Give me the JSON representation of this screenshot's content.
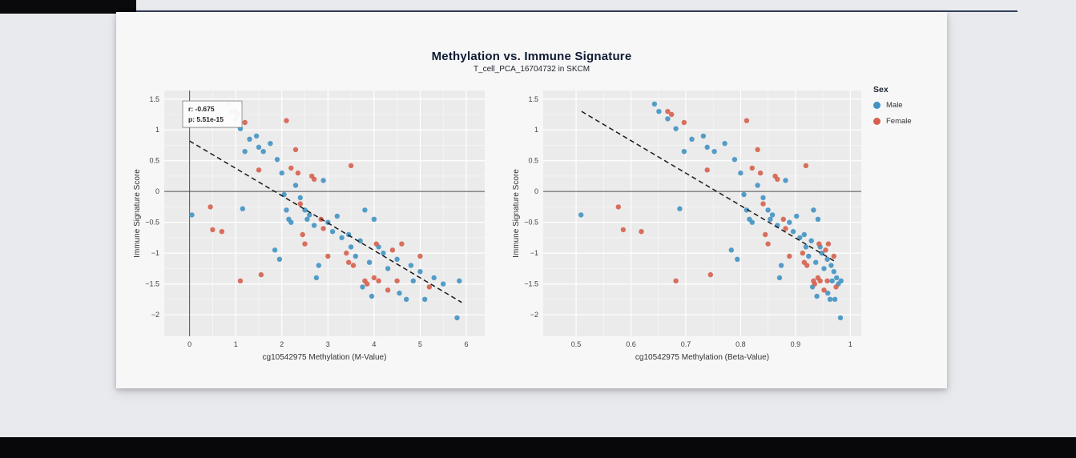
{
  "figure": {
    "title": "Methylation vs. Immune Signature",
    "subtitle": "T_cell_PCA_16704732 in SKCM"
  },
  "legend": {
    "title": "Sex",
    "items": [
      {
        "label": "Male",
        "color": "#4393c3"
      },
      {
        "label": "Female",
        "color": "#d6604d"
      }
    ]
  },
  "style": {
    "panel_bg": "#ebebeb",
    "grid_color": "#ffffff",
    "refline_color": "#4a4a4a",
    "trend_color": "#1a1a1a",
    "tick_label_color": "#444444",
    "axis_title_color": "#333333",
    "male_color": "#4393c3",
    "female_color": "#d6604d",
    "accent_rule_color": "#36425d"
  },
  "chart_data": [
    {
      "type": "scatter",
      "xlabel": "cg10542975 Methylation (M-Value)",
      "ylabel": "Immune Signature Score",
      "xlim": [
        -0.55,
        6.4
      ],
      "ylim": [
        -2.35,
        1.64
      ],
      "xticks": [
        0,
        1,
        2,
        3,
        4,
        5,
        6
      ],
      "xtick_labels": [
        "0",
        "1",
        "2",
        "3",
        "4",
        "5",
        "6"
      ],
      "yticks": [
        1.5,
        1,
        0.5,
        0,
        -0.5,
        -1,
        -1.5,
        -2
      ],
      "ytick_labels": [
        "1.5",
        "1",
        "0.5",
        "0",
        "−0.5",
        "−1",
        "−1.5",
        "−2"
      ],
      "hline": 0,
      "vline": 0,
      "trend": [
        [
          0.0,
          0.82
        ],
        [
          5.9,
          -1.8
        ]
      ],
      "annotation": {
        "x": -0.15,
        "y": 1.47,
        "lines": [
          "r: -0.675",
          "p: 5.51e-15"
        ]
      },
      "series": [
        {
          "name": "Male",
          "color": "#4393c3",
          "points": [
            [
              0.05,
              -0.38
            ],
            [
              0.85,
              1.42
            ],
            [
              0.9,
              1.3
            ],
            [
              1.0,
              1.18
            ],
            [
              1.1,
              1.02
            ],
            [
              1.3,
              0.85
            ],
            [
              1.2,
              0.65
            ],
            [
              1.45,
              0.9
            ],
            [
              1.5,
              0.72
            ],
            [
              1.6,
              0.65
            ],
            [
              1.75,
              0.78
            ],
            [
              1.9,
              0.52
            ],
            [
              1.15,
              -0.28
            ],
            [
              1.85,
              -0.95
            ],
            [
              1.95,
              -1.1
            ],
            [
              2.0,
              0.3
            ],
            [
              2.05,
              -0.05
            ],
            [
              2.1,
              -0.3
            ],
            [
              2.15,
              -0.45
            ],
            [
              2.2,
              -0.5
            ],
            [
              2.3,
              0.1
            ],
            [
              2.4,
              -0.1
            ],
            [
              2.5,
              -0.3
            ],
            [
              2.55,
              -0.45
            ],
            [
              2.6,
              -0.38
            ],
            [
              2.7,
              -0.55
            ],
            [
              2.75,
              -1.4
            ],
            [
              2.8,
              -1.2
            ],
            [
              2.9,
              0.18
            ],
            [
              3.0,
              -0.5
            ],
            [
              3.1,
              -0.65
            ],
            [
              3.2,
              -0.4
            ],
            [
              3.3,
              -0.75
            ],
            [
              3.45,
              -0.7
            ],
            [
              3.5,
              -0.9
            ],
            [
              3.6,
              -1.05
            ],
            [
              3.7,
              -0.8
            ],
            [
              3.75,
              -1.55
            ],
            [
              3.8,
              -0.3
            ],
            [
              3.9,
              -1.15
            ],
            [
              3.95,
              -1.7
            ],
            [
              4.0,
              -0.45
            ],
            [
              4.1,
              -0.9
            ],
            [
              4.2,
              -1.0
            ],
            [
              4.3,
              -1.25
            ],
            [
              4.5,
              -1.1
            ],
            [
              4.55,
              -1.65
            ],
            [
              4.7,
              -1.75
            ],
            [
              4.8,
              -1.2
            ],
            [
              4.85,
              -1.45
            ],
            [
              5.0,
              -1.3
            ],
            [
              5.1,
              -1.75
            ],
            [
              5.3,
              -1.4
            ],
            [
              5.5,
              -1.5
            ],
            [
              5.85,
              -1.45
            ],
            [
              5.8,
              -2.05
            ]
          ]
        },
        {
          "name": "Female",
          "color": "#d6604d",
          "points": [
            [
              0.45,
              -0.25
            ],
            [
              0.5,
              -0.62
            ],
            [
              0.7,
              -0.65
            ],
            [
              1.0,
              1.3
            ],
            [
              1.05,
              1.25
            ],
            [
              1.2,
              1.12
            ],
            [
              1.5,
              0.35
            ],
            [
              1.1,
              -1.45
            ],
            [
              1.55,
              -1.35
            ],
            [
              2.1,
              1.15
            ],
            [
              2.3,
              0.68
            ],
            [
              2.2,
              0.38
            ],
            [
              2.35,
              0.3
            ],
            [
              2.4,
              -0.2
            ],
            [
              2.45,
              -0.7
            ],
            [
              2.5,
              -0.85
            ],
            [
              2.65,
              0.25
            ],
            [
              2.7,
              0.2
            ],
            [
              2.85,
              -0.45
            ],
            [
              2.9,
              -0.6
            ],
            [
              3.0,
              -1.05
            ],
            [
              3.5,
              0.42
            ],
            [
              3.4,
              -1.0
            ],
            [
              3.45,
              -1.15
            ],
            [
              3.55,
              -1.2
            ],
            [
              3.8,
              -1.45
            ],
            [
              3.85,
              -1.5
            ],
            [
              4.0,
              -1.4
            ],
            [
              4.05,
              -0.85
            ],
            [
              4.1,
              -1.45
            ],
            [
              4.3,
              -1.6
            ],
            [
              4.4,
              -0.95
            ],
            [
              4.5,
              -1.45
            ],
            [
              4.6,
              -0.85
            ],
            [
              5.0,
              -1.05
            ],
            [
              5.2,
              -1.55
            ]
          ]
        }
      ]
    },
    {
      "type": "scatter",
      "xlabel": "cg10542975 Methylation (Beta-Value)",
      "ylabel": "Immune Signature Score",
      "xlim": [
        0.44,
        1.02
      ],
      "ylim": [
        -2.35,
        1.64
      ],
      "xticks": [
        0.5,
        0.6,
        0.7,
        0.8,
        0.9,
        1
      ],
      "xtick_labels": [
        "0.5",
        "0.6",
        "0.7",
        "0.8",
        "0.9",
        "1"
      ],
      "yticks": [
        1.5,
        1,
        0.5,
        0,
        -0.5,
        -1,
        -1.5,
        -2
      ],
      "ytick_labels": [
        "1.5",
        "1",
        "0.5",
        "0",
        "−0.5",
        "−1",
        "−1.5",
        "−2"
      ],
      "hline": 0,
      "vline": null,
      "trend": [
        [
          0.51,
          1.3
        ],
        [
          0.975,
          -1.15
        ]
      ],
      "annotation": null,
      "series": [
        {
          "name": "Male",
          "color": "#4393c3",
          "points": [
            [
              0.509,
              -0.38
            ],
            [
              0.643,
              1.42
            ],
            [
              0.651,
              1.3
            ],
            [
              0.667,
              1.18
            ],
            [
              0.682,
              1.02
            ],
            [
              0.711,
              0.85
            ],
            [
              0.697,
              0.65
            ],
            [
              0.732,
              0.9
            ],
            [
              0.739,
              0.72
            ],
            [
              0.752,
              0.65
            ],
            [
              0.771,
              0.78
            ],
            [
              0.789,
              0.52
            ],
            [
              0.689,
              -0.28
            ],
            [
              0.783,
              -0.95
            ],
            [
              0.794,
              -1.1
            ],
            [
              0.8,
              0.3
            ],
            [
              0.806,
              -0.05
            ],
            [
              0.811,
              -0.3
            ],
            [
              0.816,
              -0.45
            ],
            [
              0.821,
              -0.5
            ],
            [
              0.831,
              0.1
            ],
            [
              0.841,
              -0.1
            ],
            [
              0.85,
              -0.3
            ],
            [
              0.854,
              -0.45
            ],
            [
              0.858,
              -0.38
            ],
            [
              0.867,
              -0.55
            ],
            [
              0.871,
              -1.4
            ],
            [
              0.874,
              -1.2
            ],
            [
              0.882,
              0.18
            ],
            [
              0.889,
              -0.5
            ],
            [
              0.896,
              -0.65
            ],
            [
              0.902,
              -0.4
            ],
            [
              0.908,
              -0.75
            ],
            [
              0.916,
              -0.7
            ],
            [
              0.919,
              -0.9
            ],
            [
              0.924,
              -1.05
            ],
            [
              0.929,
              -0.8
            ],
            [
              0.931,
              -1.55
            ],
            [
              0.933,
              -0.3
            ],
            [
              0.937,
              -1.15
            ],
            [
              0.939,
              -1.7
            ],
            [
              0.941,
              -0.45
            ],
            [
              0.945,
              -0.9
            ],
            [
              0.948,
              -1.0
            ],
            [
              0.952,
              -1.25
            ],
            [
              0.958,
              -1.1
            ],
            [
              0.959,
              -1.65
            ],
            [
              0.963,
              -1.75
            ],
            [
              0.965,
              -1.2
            ],
            [
              0.967,
              -1.45
            ],
            [
              0.97,
              -1.3
            ],
            [
              0.972,
              -1.75
            ],
            [
              0.975,
              -1.4
            ],
            [
              0.978,
              -1.5
            ],
            [
              0.983,
              -1.45
            ],
            [
              0.982,
              -2.05
            ]
          ]
        },
        {
          "name": "Female",
          "color": "#d6604d",
          "points": [
            [
              0.577,
              -0.25
            ],
            [
              0.586,
              -0.62
            ],
            [
              0.619,
              -0.65
            ],
            [
              0.667,
              1.3
            ],
            [
              0.674,
              1.25
            ],
            [
              0.697,
              1.12
            ],
            [
              0.739,
              0.35
            ],
            [
              0.682,
              -1.45
            ],
            [
              0.745,
              -1.35
            ],
            [
              0.811,
              1.15
            ],
            [
              0.831,
              0.68
            ],
            [
              0.821,
              0.38
            ],
            [
              0.836,
              0.3
            ],
            [
              0.841,
              -0.2
            ],
            [
              0.845,
              -0.7
            ],
            [
              0.85,
              -0.85
            ],
            [
              0.863,
              0.25
            ],
            [
              0.867,
              0.2
            ],
            [
              0.878,
              -0.45
            ],
            [
              0.882,
              -0.6
            ],
            [
              0.889,
              -1.05
            ],
            [
              0.919,
              0.42
            ],
            [
              0.913,
              -1.0
            ],
            [
              0.916,
              -1.15
            ],
            [
              0.921,
              -1.2
            ],
            [
              0.933,
              -1.45
            ],
            [
              0.935,
              -1.5
            ],
            [
              0.941,
              -1.4
            ],
            [
              0.943,
              -0.85
            ],
            [
              0.945,
              -1.45
            ],
            [
              0.952,
              -1.6
            ],
            [
              0.955,
              -0.95
            ],
            [
              0.958,
              -1.45
            ],
            [
              0.96,
              -0.85
            ],
            [
              0.97,
              -1.05
            ],
            [
              0.974,
              -1.55
            ]
          ]
        }
      ]
    }
  ]
}
